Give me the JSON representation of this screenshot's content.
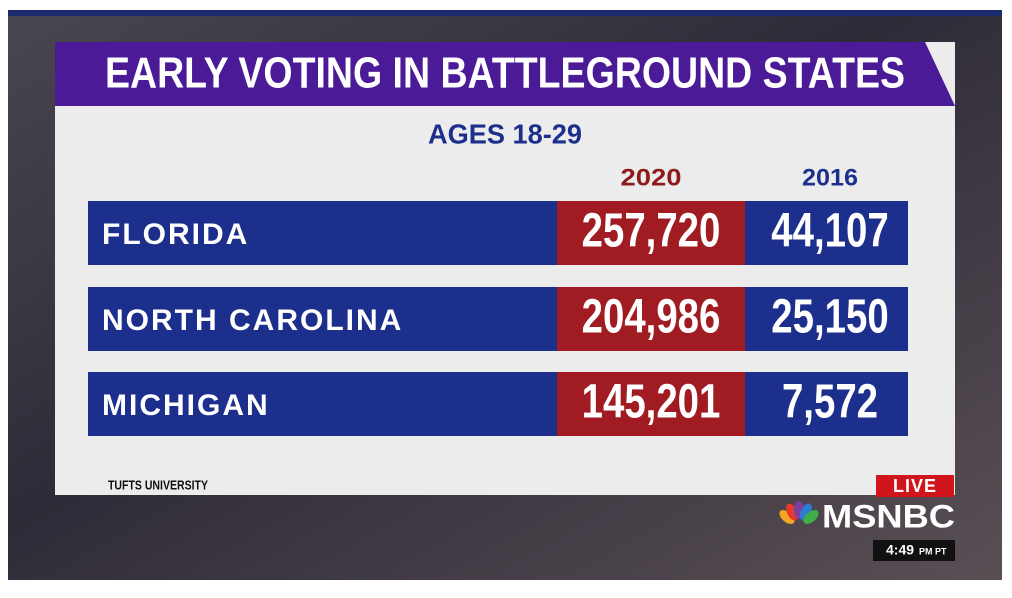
{
  "header": {
    "title": "EARLY VOTING IN BATTLEGROUND STATES",
    "subtitle": "AGES 18-29"
  },
  "table": {
    "columns": [
      "2020",
      "2016"
    ],
    "rows": [
      [
        "FLORIDA",
        "257,720",
        "44,107"
      ],
      [
        "NORTH CAROLINA",
        "204,986",
        "25,150"
      ],
      [
        "MICHIGAN",
        "145,201",
        "7,572"
      ]
    ]
  },
  "source": "TUFTS UNIVERSITY",
  "broadcast": {
    "live": "LIVE",
    "network": "MSNBC",
    "time": "4:49",
    "time_suffix": "PM PT"
  }
}
